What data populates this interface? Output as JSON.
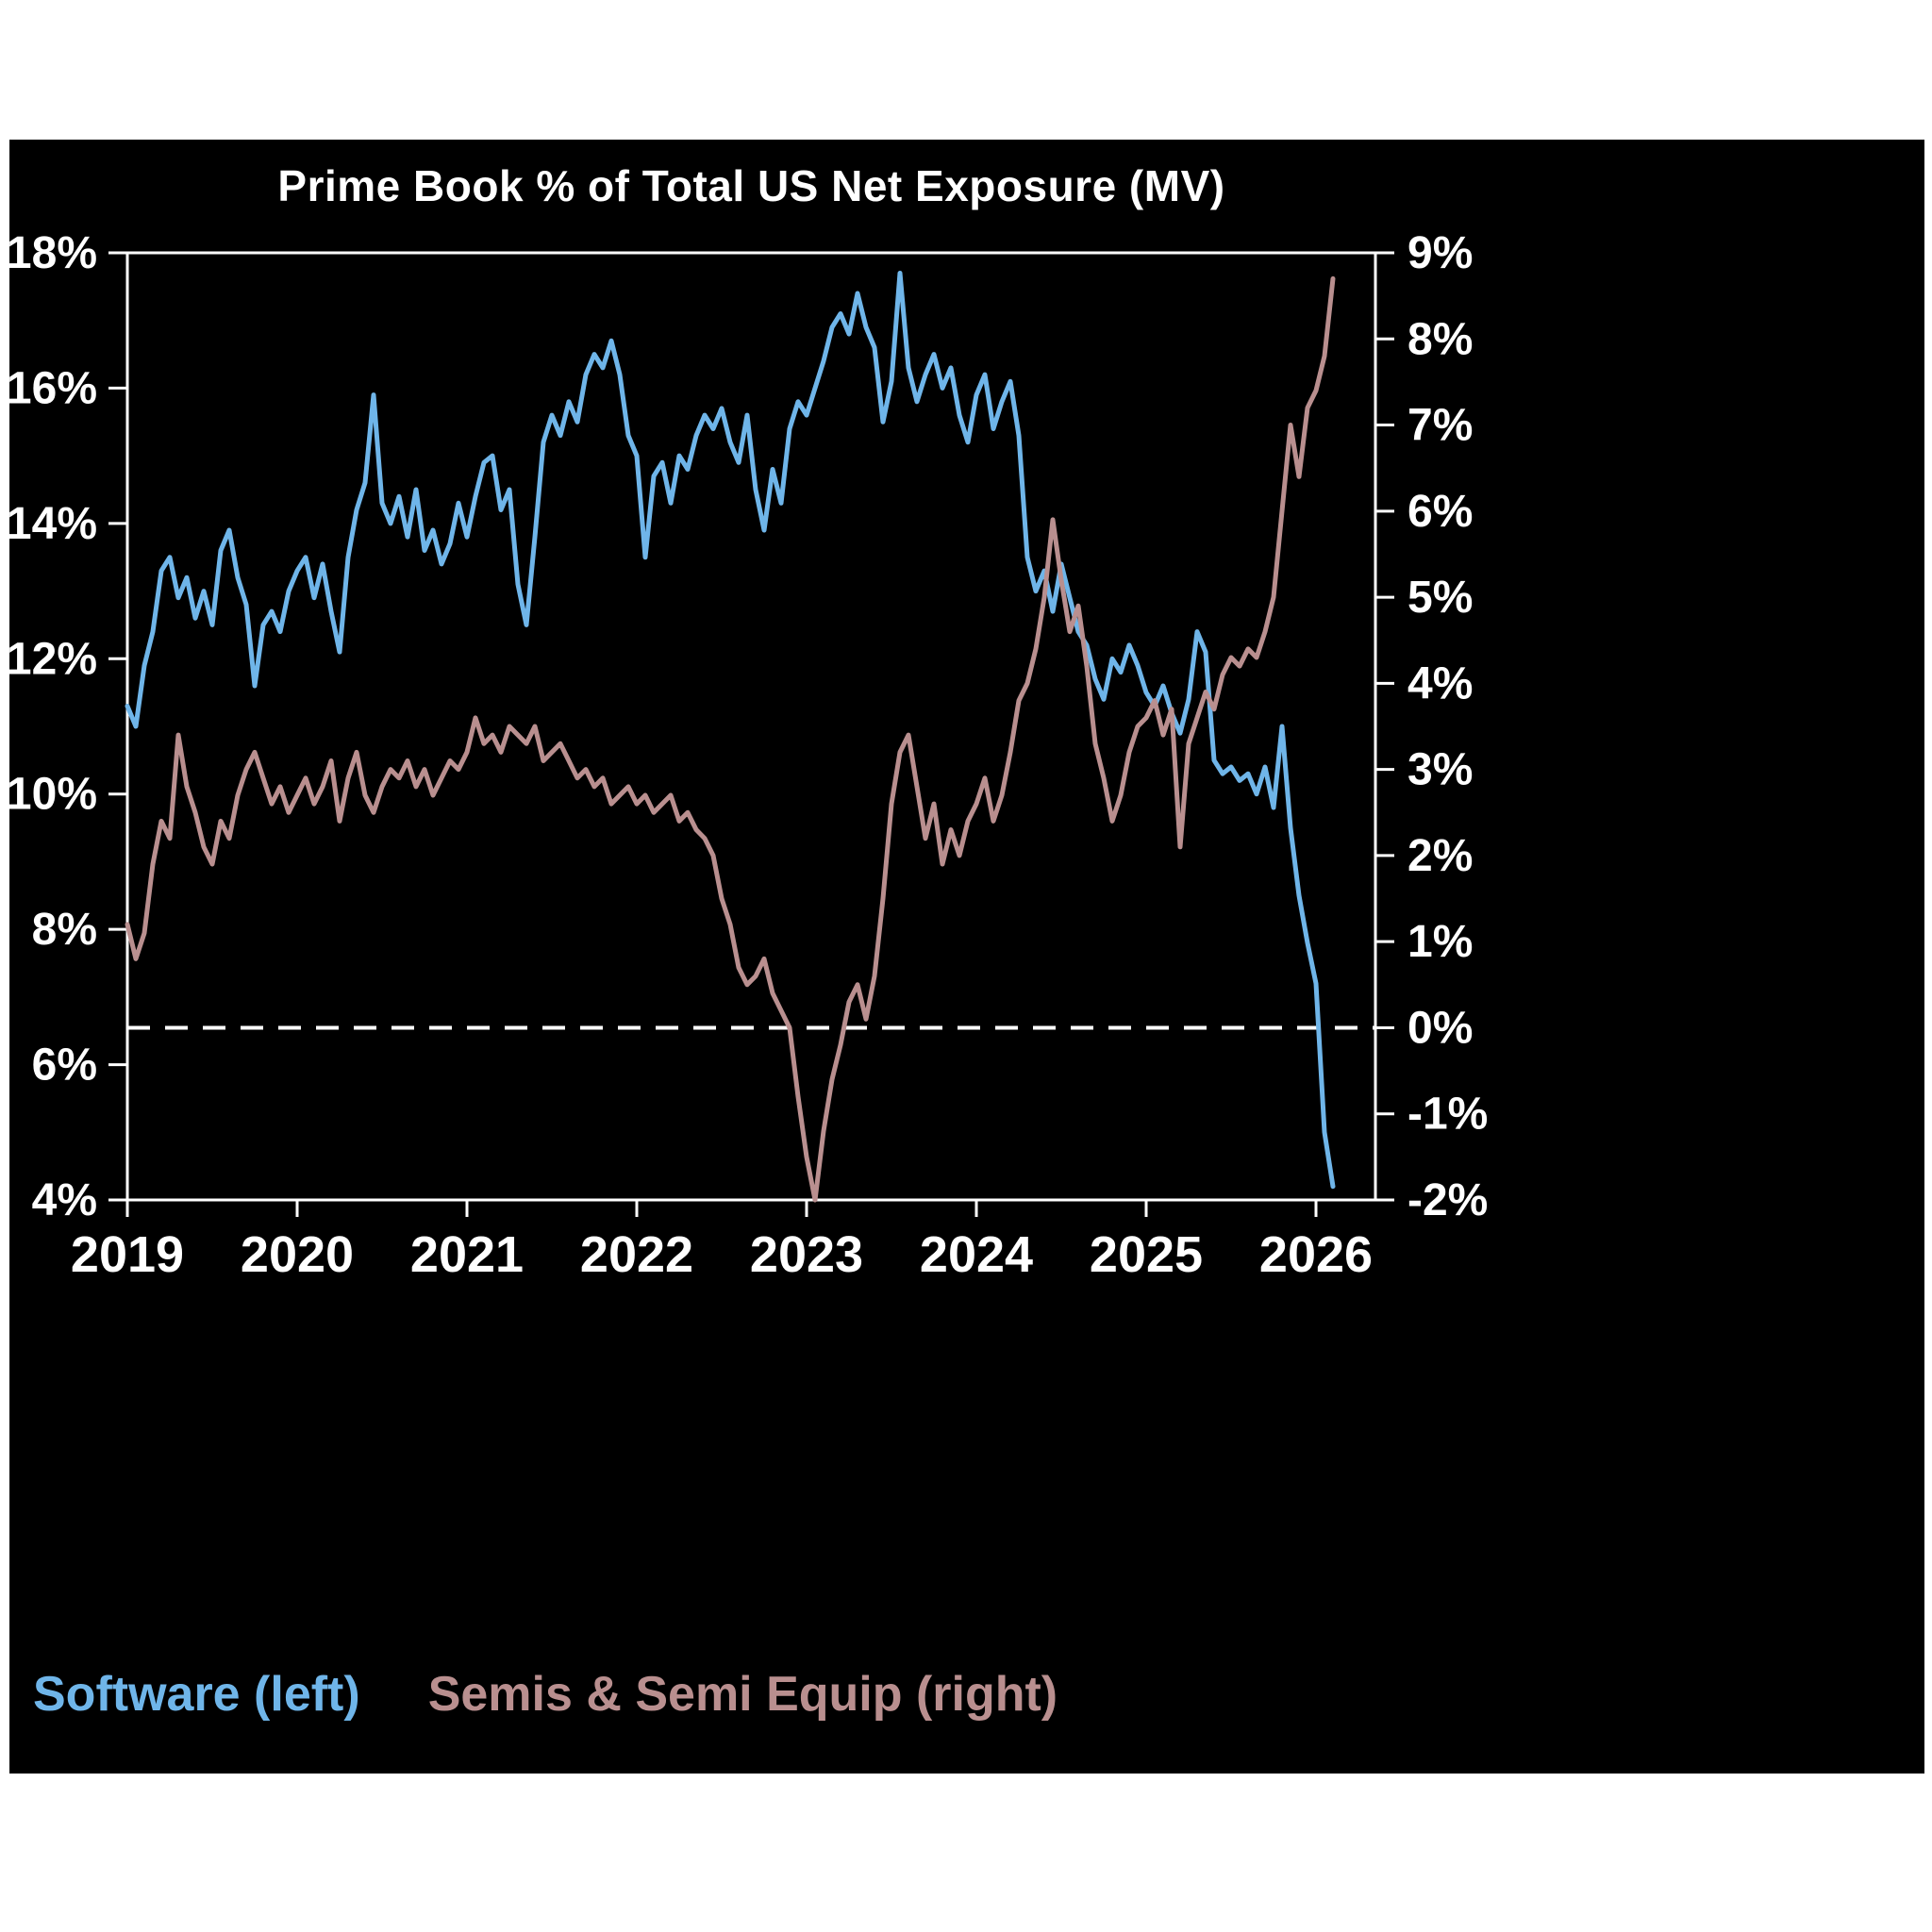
{
  "page": {
    "background_color": "#ffffff",
    "panel_color": "#000000",
    "axis_color": "#ffffff"
  },
  "chart_data": {
    "type": "line",
    "title": "Prime Book % of Total US Net Exposure (MV)",
    "grid": "off",
    "legend_position": "bottom-left",
    "x_range": [
      2019.0,
      2026.35
    ],
    "x_start": 2019.0,
    "x_step": 0.05,
    "x_axis": {
      "ticks": [
        2019,
        2020,
        2021,
        2022,
        2023,
        2024,
        2025,
        2026
      ],
      "labels": [
        "2019",
        "2020",
        "2021",
        "2022",
        "2023",
        "2024",
        "2025",
        "2026"
      ]
    },
    "left_axis": {
      "range": [
        4,
        18
      ],
      "ticks": [
        18,
        16,
        14,
        12,
        10,
        8,
        6,
        4
      ],
      "labels": [
        "18%",
        "16%",
        "14%",
        "12%",
        "10%",
        "8%",
        "6%",
        "4%"
      ]
    },
    "right_axis": {
      "range": [
        -2,
        9
      ],
      "ticks": [
        9,
        8,
        7,
        6,
        5,
        4,
        3,
        2,
        1,
        0,
        -1,
        -2
      ],
      "labels": [
        "9%",
        "8%",
        "7%",
        "6%",
        "5%",
        "4%",
        "3%",
        "2%",
        "1%",
        "0%",
        "-1%",
        "-2%"
      ]
    },
    "zero_line_right": 0,
    "series": [
      {
        "name": "Software (left)",
        "axis": "left",
        "color": "#6fb5e9",
        "values": [
          11.3,
          11.0,
          11.9,
          12.4,
          13.3,
          13.5,
          12.9,
          13.2,
          12.6,
          13.0,
          12.5,
          13.6,
          13.9,
          13.2,
          12.8,
          11.6,
          12.5,
          12.7,
          12.4,
          13.0,
          13.3,
          13.5,
          12.9,
          13.4,
          12.7,
          12.1,
          13.5,
          14.2,
          14.6,
          15.9,
          14.3,
          14.0,
          14.4,
          13.8,
          14.5,
          13.6,
          13.9,
          13.4,
          13.7,
          14.3,
          13.8,
          14.4,
          14.9,
          15.0,
          14.2,
          14.5,
          13.1,
          12.5,
          13.8,
          15.2,
          15.6,
          15.3,
          15.8,
          15.5,
          16.2,
          16.5,
          16.3,
          16.7,
          16.2,
          15.3,
          15.0,
          13.5,
          14.7,
          14.9,
          14.3,
          15.0,
          14.8,
          15.3,
          15.6,
          15.4,
          15.7,
          15.2,
          14.9,
          15.6,
          14.5,
          13.9,
          14.8,
          14.3,
          15.4,
          15.8,
          15.6,
          16.0,
          16.4,
          16.9,
          17.1,
          16.8,
          17.4,
          16.9,
          16.6,
          15.5,
          16.1,
          17.7,
          16.3,
          15.8,
          16.2,
          16.5,
          16.0,
          16.3,
          15.6,
          15.2,
          15.9,
          16.2,
          15.4,
          15.8,
          16.1,
          15.3,
          13.5,
          13.0,
          13.3,
          12.7,
          13.4,
          12.9,
          12.4,
          12.2,
          11.7,
          11.4,
          12.0,
          11.8,
          12.2,
          11.9,
          11.5,
          11.3,
          11.6,
          11.2,
          10.9,
          11.4,
          12.4,
          12.1,
          10.5,
          10.3,
          10.4,
          10.2,
          10.3,
          10.0,
          10.4,
          9.8,
          11.0,
          9.5,
          8.5,
          7.8,
          7.2,
          5.0,
          4.2
        ]
      },
      {
        "name": "Semis & Semi Equip (right)",
        "axis": "right",
        "color": "#b98f8f",
        "values": [
          1.2,
          0.8,
          1.1,
          1.9,
          2.4,
          2.2,
          3.4,
          2.8,
          2.5,
          2.1,
          1.9,
          2.4,
          2.2,
          2.7,
          3.0,
          3.2,
          2.9,
          2.6,
          2.8,
          2.5,
          2.7,
          2.9,
          2.6,
          2.8,
          3.1,
          2.4,
          2.9,
          3.2,
          2.7,
          2.5,
          2.8,
          3.0,
          2.9,
          3.1,
          2.8,
          3.0,
          2.7,
          2.9,
          3.1,
          3.0,
          3.2,
          3.6,
          3.3,
          3.4,
          3.2,
          3.5,
          3.4,
          3.3,
          3.5,
          3.1,
          3.2,
          3.3,
          3.1,
          2.9,
          3.0,
          2.8,
          2.9,
          2.6,
          2.7,
          2.8,
          2.6,
          2.7,
          2.5,
          2.6,
          2.7,
          2.4,
          2.5,
          2.3,
          2.2,
          2.0,
          1.5,
          1.2,
          0.7,
          0.5,
          0.6,
          0.8,
          0.4,
          0.2,
          0.0,
          -0.8,
          -1.5,
          -2.0,
          -1.2,
          -0.6,
          -0.2,
          0.3,
          0.5,
          0.1,
          0.6,
          1.5,
          2.6,
          3.2,
          3.4,
          2.8,
          2.2,
          2.6,
          1.9,
          2.3,
          2.0,
          2.4,
          2.6,
          2.9,
          2.4,
          2.7,
          3.2,
          3.8,
          4.0,
          4.4,
          5.0,
          5.9,
          5.2,
          4.6,
          4.9,
          4.2,
          3.3,
          2.9,
          2.4,
          2.7,
          3.2,
          3.5,
          3.6,
          3.8,
          3.4,
          3.7,
          2.1,
          3.3,
          3.6,
          3.9,
          3.7,
          4.1,
          4.3,
          4.2,
          4.4,
          4.3,
          4.6,
          5.0,
          6.0,
          7.0,
          6.4,
          7.2,
          7.4,
          7.8,
          8.7
        ]
      }
    ],
    "legend": [
      {
        "label": "Software (left)",
        "color": "#6fb5e9"
      },
      {
        "label": "Semis & Semi Equip (right)",
        "color": "#b98f8f"
      }
    ]
  }
}
